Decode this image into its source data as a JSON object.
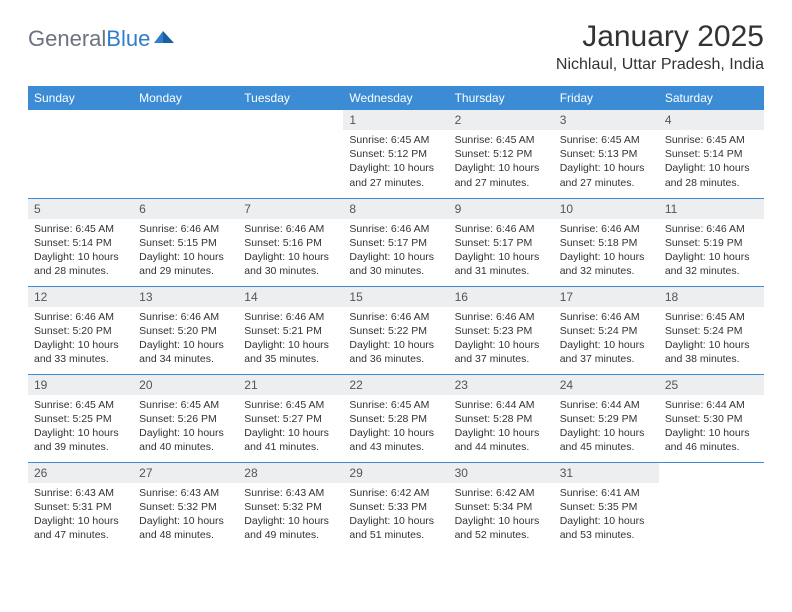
{
  "brand": {
    "part1": "General",
    "part2": "Blue"
  },
  "title": "January 2025",
  "location": "Nichlaul, Uttar Pradesh, India",
  "colors": {
    "header_bg": "#3b8cd4",
    "header_text": "#ffffff",
    "daynum_bg": "#eceeef",
    "row_divider": "#3b8cd4",
    "logo_gray": "#6b7280",
    "logo_blue": "#2f7ecb"
  },
  "day_headers": [
    "Sunday",
    "Monday",
    "Tuesday",
    "Wednesday",
    "Thursday",
    "Friday",
    "Saturday"
  ],
  "weeks": [
    [
      null,
      null,
      null,
      {
        "n": "1",
        "sr": "6:45 AM",
        "ss": "5:12 PM",
        "dl": "10 hours and 27 minutes."
      },
      {
        "n": "2",
        "sr": "6:45 AM",
        "ss": "5:12 PM",
        "dl": "10 hours and 27 minutes."
      },
      {
        "n": "3",
        "sr": "6:45 AM",
        "ss": "5:13 PM",
        "dl": "10 hours and 27 minutes."
      },
      {
        "n": "4",
        "sr": "6:45 AM",
        "ss": "5:14 PM",
        "dl": "10 hours and 28 minutes."
      }
    ],
    [
      {
        "n": "5",
        "sr": "6:45 AM",
        "ss": "5:14 PM",
        "dl": "10 hours and 28 minutes."
      },
      {
        "n": "6",
        "sr": "6:46 AM",
        "ss": "5:15 PM",
        "dl": "10 hours and 29 minutes."
      },
      {
        "n": "7",
        "sr": "6:46 AM",
        "ss": "5:16 PM",
        "dl": "10 hours and 30 minutes."
      },
      {
        "n": "8",
        "sr": "6:46 AM",
        "ss": "5:17 PM",
        "dl": "10 hours and 30 minutes."
      },
      {
        "n": "9",
        "sr": "6:46 AM",
        "ss": "5:17 PM",
        "dl": "10 hours and 31 minutes."
      },
      {
        "n": "10",
        "sr": "6:46 AM",
        "ss": "5:18 PM",
        "dl": "10 hours and 32 minutes."
      },
      {
        "n": "11",
        "sr": "6:46 AM",
        "ss": "5:19 PM",
        "dl": "10 hours and 32 minutes."
      }
    ],
    [
      {
        "n": "12",
        "sr": "6:46 AM",
        "ss": "5:20 PM",
        "dl": "10 hours and 33 minutes."
      },
      {
        "n": "13",
        "sr": "6:46 AM",
        "ss": "5:20 PM",
        "dl": "10 hours and 34 minutes."
      },
      {
        "n": "14",
        "sr": "6:46 AM",
        "ss": "5:21 PM",
        "dl": "10 hours and 35 minutes."
      },
      {
        "n": "15",
        "sr": "6:46 AM",
        "ss": "5:22 PM",
        "dl": "10 hours and 36 minutes."
      },
      {
        "n": "16",
        "sr": "6:46 AM",
        "ss": "5:23 PM",
        "dl": "10 hours and 37 minutes."
      },
      {
        "n": "17",
        "sr": "6:46 AM",
        "ss": "5:24 PM",
        "dl": "10 hours and 37 minutes."
      },
      {
        "n": "18",
        "sr": "6:45 AM",
        "ss": "5:24 PM",
        "dl": "10 hours and 38 minutes."
      }
    ],
    [
      {
        "n": "19",
        "sr": "6:45 AM",
        "ss": "5:25 PM",
        "dl": "10 hours and 39 minutes."
      },
      {
        "n": "20",
        "sr": "6:45 AM",
        "ss": "5:26 PM",
        "dl": "10 hours and 40 minutes."
      },
      {
        "n": "21",
        "sr": "6:45 AM",
        "ss": "5:27 PM",
        "dl": "10 hours and 41 minutes."
      },
      {
        "n": "22",
        "sr": "6:45 AM",
        "ss": "5:28 PM",
        "dl": "10 hours and 43 minutes."
      },
      {
        "n": "23",
        "sr": "6:44 AM",
        "ss": "5:28 PM",
        "dl": "10 hours and 44 minutes."
      },
      {
        "n": "24",
        "sr": "6:44 AM",
        "ss": "5:29 PM",
        "dl": "10 hours and 45 minutes."
      },
      {
        "n": "25",
        "sr": "6:44 AM",
        "ss": "5:30 PM",
        "dl": "10 hours and 46 minutes."
      }
    ],
    [
      {
        "n": "26",
        "sr": "6:43 AM",
        "ss": "5:31 PM",
        "dl": "10 hours and 47 minutes."
      },
      {
        "n": "27",
        "sr": "6:43 AM",
        "ss": "5:32 PM",
        "dl": "10 hours and 48 minutes."
      },
      {
        "n": "28",
        "sr": "6:43 AM",
        "ss": "5:32 PM",
        "dl": "10 hours and 49 minutes."
      },
      {
        "n": "29",
        "sr": "6:42 AM",
        "ss": "5:33 PM",
        "dl": "10 hours and 51 minutes."
      },
      {
        "n": "30",
        "sr": "6:42 AM",
        "ss": "5:34 PM",
        "dl": "10 hours and 52 minutes."
      },
      {
        "n": "31",
        "sr": "6:41 AM",
        "ss": "5:35 PM",
        "dl": "10 hours and 53 minutes."
      },
      null
    ]
  ],
  "labels": {
    "sunrise": "Sunrise:",
    "sunset": "Sunset:",
    "daylight": "Daylight:"
  }
}
